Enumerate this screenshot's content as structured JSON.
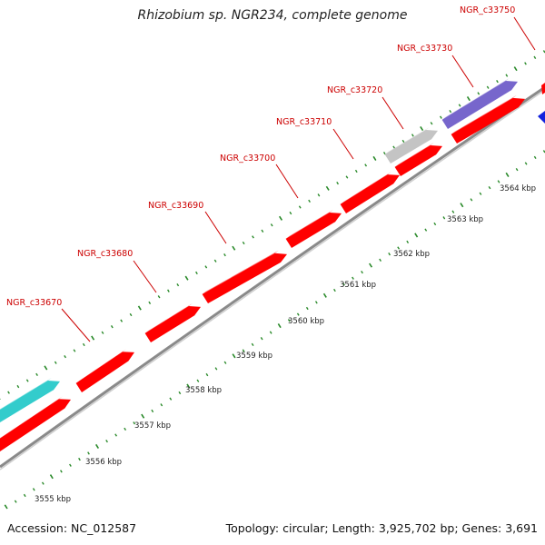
{
  "title": "Rhizobium sp. NGR234, complete genome",
  "footer": {
    "accession": "Accession: NC_012587",
    "summary": "Topology: circular; Length: 3,925,702 bp; Genes: 3,691"
  },
  "colors": {
    "gene_red": "#ff0000",
    "gene_cyan": "#33cccc",
    "gene_purple": "#7766cc",
    "gene_gray": "#c4c4c4",
    "gene_blue": "#1122dd",
    "label_red": "#cc0000",
    "tick_green": "#2a8a2a",
    "backbone": "#888888",
    "kbp_text": "#222222"
  },
  "kbp_ticks": [
    "3555 kbp",
    "3556 kbp",
    "3557 kbp",
    "3558 kbp",
    "3559 kbp",
    "3560 kbp",
    "3561 kbp",
    "3562 kbp",
    "3563 kbp",
    "3564 kbp"
  ],
  "gene_labels": [
    "NGR_c33670",
    "NGR_c33680",
    "NGR_c33690",
    "NGR_c33700",
    "NGR_c33710",
    "NGR_c33720",
    "NGR_c33730",
    "NGR_c33750"
  ]
}
